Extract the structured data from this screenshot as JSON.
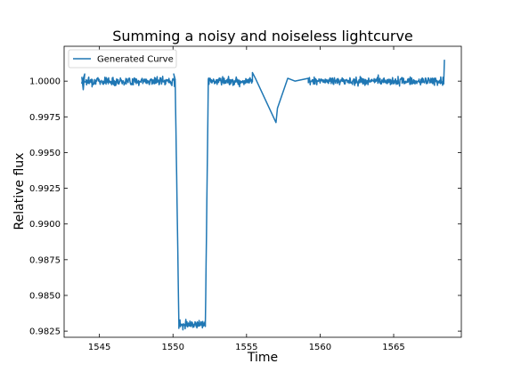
{
  "chart_data": {
    "type": "line",
    "title": "Summing a noisy and noiseless lightcurve",
    "xlabel": "Time",
    "ylabel": "Relative flux",
    "xlim": [
      1542.6,
      1569.6
    ],
    "ylim": [
      0.98207,
      1.00244
    ],
    "xticks": [
      1545,
      1550,
      1555,
      1560,
      1565
    ],
    "xtick_labels": [
      "1545",
      "1550",
      "1555",
      "1560",
      "1565"
    ],
    "yticks": [
      0.9825,
      0.985,
      0.9875,
      0.99,
      0.9925,
      0.995,
      0.9975,
      1.0
    ],
    "ytick_labels": [
      "0.9825",
      "0.9850",
      "0.9875",
      "0.9900",
      "0.9925",
      "0.9950",
      "0.9975",
      "1.0000"
    ],
    "grid": false,
    "legend_position": "top-left",
    "line_color": "#1f77b4",
    "noise_sigma": 0.00014,
    "series": [
      {
        "name": "Generated Curve",
        "segments": [
          {
            "x_start": 1543.8,
            "x_end": 1550.15,
            "level": 1.0
          },
          {
            "x_start": 1550.15,
            "x_end": 1550.4,
            "level": 1.0,
            "level_end": 0.983
          },
          {
            "x_start": 1550.4,
            "x_end": 1552.2,
            "level": 0.983
          },
          {
            "x_start": 1552.2,
            "x_end": 1552.4,
            "level": 0.983,
            "level_end": 1.0
          },
          {
            "x_start": 1552.4,
            "x_end": 1555.4,
            "level": 1.0
          }
        ],
        "points": [
          [
            1543.8,
            1.0003
          ],
          [
            1543.9,
            0.9994
          ],
          [
            1544.0,
            1.0005
          ],
          [
            1550.05,
            1.0005
          ],
          [
            1555.4,
            1.0006
          ],
          [
            1555.6,
            1.0002
          ],
          [
            1557.0,
            0.9971
          ],
          [
            1557.1,
            0.9981
          ],
          [
            1557.3,
            0.9987
          ],
          [
            1557.6,
            0.9996
          ],
          [
            1557.8,
            1.0002
          ],
          [
            1558.3,
            1.0
          ],
          [
            1559.2,
            1.0002
          ],
          [
            1568.4,
            0.9998
          ],
          [
            1568.45,
            1.0015
          ]
        ],
        "tail": {
          "x_start": 1559.2,
          "x_end": 1568.4,
          "level": 1.0
        }
      }
    ]
  }
}
